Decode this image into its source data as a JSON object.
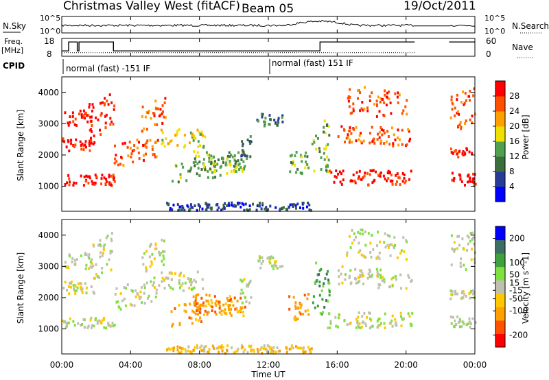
{
  "header": {
    "station": "Christmas Valley West (fitACF)",
    "beam": "Beam 05",
    "date": "19/Oct/2011"
  },
  "noise_panel": {
    "left_label": "N.Sky",
    "right_label": "N.Search",
    "ticks_left": [
      "10^5",
      "10^0"
    ],
    "ticks_right": [
      "10^5",
      "10^0"
    ]
  },
  "freq_panel": {
    "left_label_line1": "Freq.",
    "left_label_line2": "[MHz]",
    "right_label": "Nave",
    "ticks_left": [
      "18",
      "8"
    ],
    "ticks_right": [
      "60",
      "0"
    ]
  },
  "cpid": {
    "label": "CPID",
    "programs": [
      "normal (fast) -151 IF",
      "normal (fast) 151 IF"
    ]
  },
  "chart_data": [
    {
      "type": "heatmap",
      "name": "power",
      "ylabel": "Slant Range [km]",
      "yticks": [
        1000,
        2000,
        3000,
        4000
      ],
      "ylim": [
        200,
        4500
      ],
      "xlim_hours": [
        0,
        24
      ],
      "colorbar": {
        "title": "Power [dB]",
        "ticks": [
          4,
          8,
          12,
          16,
          20,
          24,
          28
        ],
        "range": [
          0,
          32
        ],
        "colors": [
          "#0000ff",
          "#283c96",
          "#3c6e3c",
          "#50a050",
          "#f0e000",
          "#ffa000",
          "#ff5000",
          "#ff0000"
        ]
      },
      "gap_hours": [
        20.5,
        22.5
      ]
    },
    {
      "type": "heatmap",
      "name": "velocity",
      "ylabel": "Slant Range [km]",
      "yticks": [
        1000,
        2000,
        3000,
        4000
      ],
      "ylim": [
        200,
        4500
      ],
      "xlim_hours": [
        0,
        24
      ],
      "colorbar": {
        "title": "Velocity [m s^-1]",
        "ticks": [
          -200,
          -100,
          -50,
          -15,
          15,
          50,
          100,
          200
        ],
        "range": [
          -250,
          250
        ],
        "colors": [
          "#ff0000",
          "#ff5000",
          "#ffa000",
          "#ffc800",
          "#c0c0b0",
          "#80e040",
          "#40a040",
          "#3c6e64",
          "#0000ff"
        ]
      },
      "gap_hours": [
        20.5,
        22.5
      ]
    }
  ],
  "x_axis": {
    "label": "Time UT",
    "ticks": [
      "00:00",
      "04:00",
      "08:00",
      "12:00",
      "16:00",
      "20:00",
      "00:00"
    ]
  }
}
